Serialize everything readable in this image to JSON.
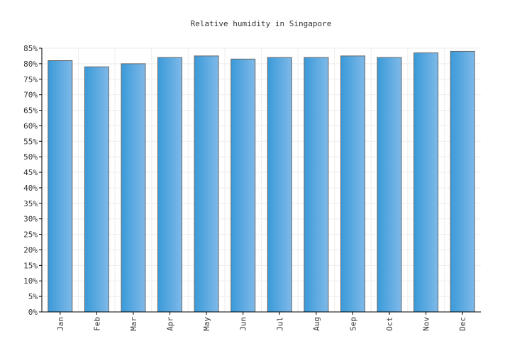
{
  "chart_data": {
    "type": "bar",
    "title": "Relative humidity in Singapore",
    "xlabel": "",
    "ylabel": "",
    "categories": [
      "Jan",
      "Feb",
      "Mar",
      "Apr",
      "May",
      "Jun",
      "Jul",
      "Aug",
      "Sep",
      "Oct",
      "Nov",
      "Dec"
    ],
    "values": [
      81,
      79,
      80,
      82,
      82.5,
      81.5,
      82,
      82,
      82.5,
      82,
      83.5,
      84
    ],
    "ylim": [
      0,
      85
    ],
    "ytick_step": 5,
    "ytick_suffix": "%",
    "grid": true,
    "legend": "none",
    "colors": {
      "bar_fill_dark": "#3a9ad9",
      "bar_fill_light": "#7fb9e8",
      "bar_stroke": "#666666",
      "grid": "#eeeeee",
      "axis": "#000000"
    }
  }
}
